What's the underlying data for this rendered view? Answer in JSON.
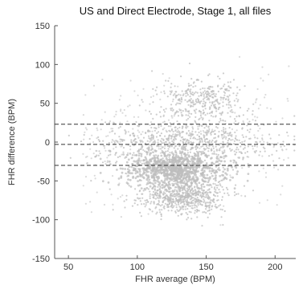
{
  "chart_data": {
    "type": "scatter",
    "title": "US and Direct Electrode, Stage 1, all files",
    "xlabel": "FHR average (BPM)",
    "ylabel": "FHR difference (BPM)",
    "xlim": [
      40,
      215
    ],
    "ylim": [
      -150,
      150
    ],
    "xticks": [
      50,
      100,
      150,
      200
    ],
    "yticks": [
      -150,
      -100,
      -50,
      0,
      50,
      100,
      150
    ],
    "grid": false,
    "legend": "none",
    "colors": {
      "points": "#bdbdbd",
      "reference_lines": "#333333",
      "axes": "#555555"
    },
    "reference_lines": [
      {
        "label": "upper limit of agreement",
        "y": 23,
        "style": "dashed"
      },
      {
        "label": "mean difference",
        "y": -3,
        "style": "dashed"
      },
      {
        "label": "lower limit of agreement",
        "y": -30,
        "style": "dashed"
      }
    ],
    "point_density_regions": [
      {
        "x_range": [
          95,
          160
        ],
        "y_range": [
          -55,
          -15
        ],
        "density": "very high"
      },
      {
        "x_range": [
          105,
          160
        ],
        "y_range": [
          -90,
          -50
        ],
        "density": "high"
      },
      {
        "x_range": [
          80,
          190
        ],
        "y_range": [
          -30,
          30
        ],
        "density": "high"
      },
      {
        "x_range": [
          120,
          175
        ],
        "y_range": [
          30,
          80
        ],
        "density": "medium"
      },
      {
        "x_range": [
          60,
          210
        ],
        "y_range": [
          -110,
          110
        ],
        "density": "sparse"
      }
    ]
  }
}
